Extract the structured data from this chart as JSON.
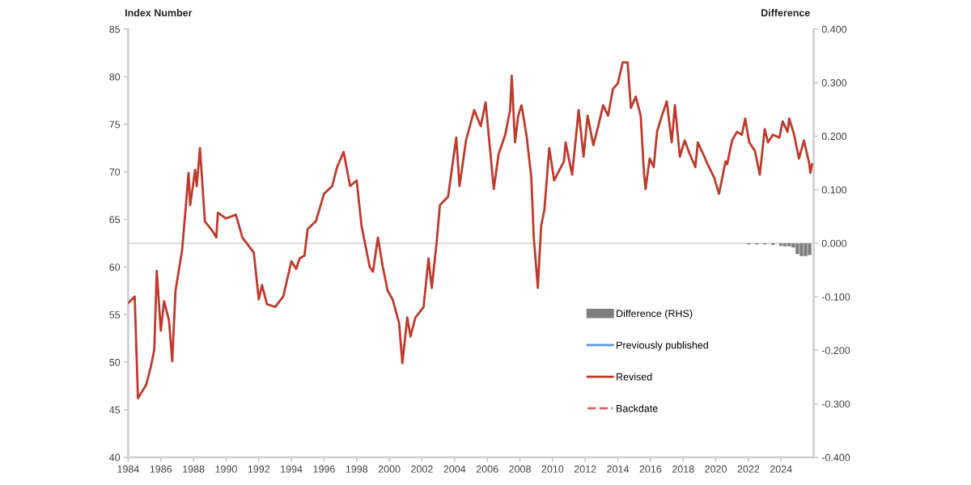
{
  "chart_data": {
    "type": "line",
    "ylabel": "Index Number",
    "y2label": "Difference",
    "xlim": [
      1984,
      2026
    ],
    "xticks": [
      1984,
      1986,
      1988,
      1990,
      1992,
      1994,
      1996,
      1998,
      2000,
      2002,
      2004,
      2006,
      2008,
      2010,
      2012,
      2014,
      2016,
      2018,
      2020,
      2022,
      2024
    ],
    "ylim": [
      40,
      85
    ],
    "yticks": [
      40,
      45,
      50,
      55,
      60,
      65,
      70,
      75,
      80,
      85
    ],
    "y2lim": [
      -0.4,
      0.4
    ],
    "y2ticks": [
      {
        "value": -0.4,
        "label": "-0.400"
      },
      {
        "value": -0.3,
        "label": "-0.300"
      },
      {
        "value": -0.2,
        "label": "-0.200"
      },
      {
        "value": -0.1,
        "label": "-0.100"
      },
      {
        "value": 0,
        "label": "0.000"
      },
      {
        "value": 0.1,
        "label": "0.100"
      },
      {
        "value": 0.2,
        "label": "0.200"
      },
      {
        "value": 0.3,
        "label": "0.300"
      },
      {
        "value": 0.4,
        "label": "0.400"
      }
    ],
    "grid": false,
    "legend": "bottom right",
    "ref_lines": [
      {
        "axis": "y2",
        "value": 0,
        "color": "#d9d9d9"
      }
    ],
    "series": [
      {
        "name": "Difference (RHS)",
        "type": "bar",
        "axis": "y2",
        "color": "#7f7f7f",
        "x": [
          2022.0,
          2022.5,
          2023.0,
          2023.5,
          2024.0,
          2024.25,
          2024.5,
          2024.75,
          2025.0,
          2025.25,
          2025.5,
          2025.75
        ],
        "values": [
          -0.002,
          -0.002,
          -0.002,
          -0.003,
          -0.005,
          -0.006,
          -0.006,
          -0.008,
          -0.02,
          -0.024,
          -0.024,
          -0.022
        ]
      },
      {
        "name": "Previously published",
        "color": "#5b9bd5"
      },
      {
        "name": "Revised",
        "color": "#c0392b",
        "line_style": "solid",
        "x": [
          1984.0,
          1984.4,
          1984.6,
          1985.1,
          1985.4,
          1985.6,
          1985.75,
          1986.0,
          1986.2,
          1986.5,
          1986.7,
          1986.9,
          1987.3,
          1987.5,
          1987.7,
          1987.8,
          1988.1,
          1988.2,
          1988.4,
          1988.7,
          1989.2,
          1989.4,
          1989.5,
          1990.0,
          1990.6,
          1991.0,
          1991.7,
          1992.0,
          1992.2,
          1992.5,
          1993.0,
          1993.5,
          1994.0,
          1994.3,
          1994.5,
          1994.8,
          1995.0,
          1995.5,
          1996.0,
          1996.5,
          1996.8,
          1997.2,
          1997.6,
          1998.0,
          1998.3,
          1998.5,
          1998.8,
          1999.0,
          1999.3,
          1999.6,
          1999.9,
          2000.2,
          2000.6,
          2000.8,
          2001.1,
          2001.3,
          2001.6,
          2002.1,
          2002.4,
          2002.6,
          2002.9,
          2003.1,
          2003.6,
          2004.1,
          2004.3,
          2004.7,
          2005.2,
          2005.6,
          2005.9,
          2006.4,
          2006.7,
          2007.1,
          2007.4,
          2007.5,
          2007.7,
          2007.9,
          2008.1,
          2008.4,
          2008.7,
          2008.85,
          2009.1,
          2009.3,
          2009.5,
          2009.8,
          2010.1,
          2010.7,
          2010.8,
          2011.2,
          2011.6,
          2011.9,
          2012.15,
          2012.5,
          2012.8,
          2013.1,
          2013.4,
          2013.7,
          2014.0,
          2014.3,
          2014.6,
          2014.8,
          2015.1,
          2015.4,
          2015.6,
          2015.7,
          2015.95,
          2016.2,
          2016.4,
          2016.7,
          2017.0,
          2017.3,
          2017.5,
          2017.8,
          2018.1,
          2018.4,
          2018.75,
          2018.9,
          2019.3,
          2019.5,
          2019.9,
          2020.2,
          2020.6,
          2020.7,
          2021.0,
          2021.3,
          2021.6,
          2021.8,
          2022.05,
          2022.4,
          2022.7,
          2023.0,
          2023.2,
          2023.5,
          2023.9,
          2024.1,
          2024.4,
          2024.5,
          2024.8,
          2025.1,
          2025.4,
          2025.7,
          2025.8,
          2025.9
        ],
        "values": [
          56.2,
          56.9,
          46.2,
          47.6,
          49.6,
          51.3,
          59.6,
          53.3,
          56.4,
          54.4,
          50.1,
          57.5,
          61.7,
          65.7,
          69.9,
          66.5,
          70.2,
          68.5,
          72.5,
          64.8,
          63.7,
          63.1,
          65.7,
          65.1,
          65.5,
          63.1,
          61.5,
          56.6,
          58.1,
          56.1,
          55.8,
          56.9,
          60.6,
          59.8,
          60.9,
          61.2,
          64.0,
          64.8,
          67.7,
          68.5,
          70.5,
          72.1,
          68.5,
          69.1,
          64.3,
          62.6,
          60.0,
          59.5,
          63.1,
          60.0,
          57.5,
          56.6,
          54.1,
          49.9,
          54.7,
          52.7,
          54.7,
          55.8,
          60.9,
          57.8,
          62.6,
          66.5,
          67.4,
          73.6,
          68.5,
          73.3,
          76.5,
          74.8,
          77.3,
          68.2,
          71.9,
          73.9,
          76.5,
          80.1,
          73.1,
          75.9,
          77.0,
          73.9,
          69.4,
          63.1,
          57.8,
          64.3,
          66.0,
          72.5,
          69.1,
          71.1,
          73.1,
          69.7,
          76.5,
          71.6,
          75.9,
          72.8,
          74.8,
          77.0,
          75.9,
          78.7,
          79.3,
          81.5,
          81.5,
          76.7,
          77.9,
          75.9,
          69.9,
          68.2,
          71.4,
          70.5,
          74.2,
          75.9,
          77.4,
          73.1,
          77.0,
          71.6,
          73.3,
          71.9,
          70.5,
          73.1,
          71.6,
          70.8,
          69.4,
          67.7,
          71.1,
          70.8,
          73.3,
          74.2,
          73.9,
          75.6,
          73.1,
          72.2,
          69.7,
          74.5,
          73.1,
          73.9,
          73.6,
          75.3,
          74.2,
          75.6,
          73.9,
          71.4,
          73.3,
          71.1,
          69.9,
          70.8
        ]
      },
      {
        "name": "Backdate",
        "color": "#e06060",
        "line_style": "dashed"
      }
    ]
  }
}
